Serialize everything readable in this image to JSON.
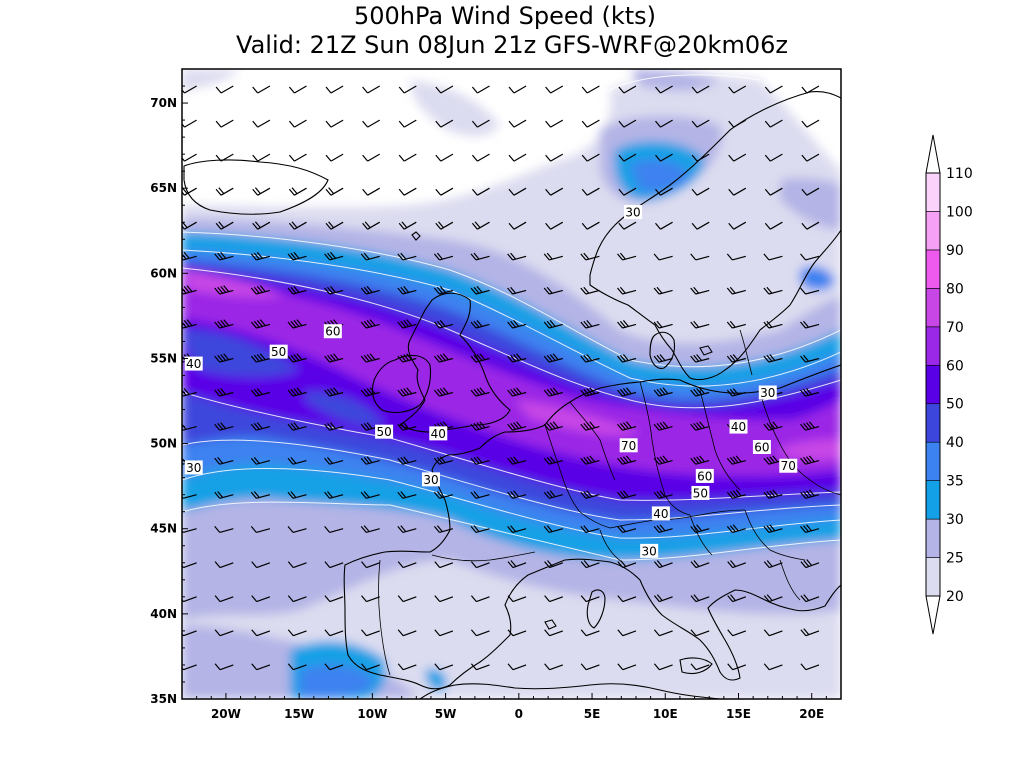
{
  "title": {
    "line1": "500hPa Wind Speed (kts)",
    "line2": "Valid: 21Z Sun 08Jun 21z GFS-WRF@20km06z"
  },
  "axes": {
    "lat_labels": [
      "70N",
      "65N",
      "60N",
      "55N",
      "50N",
      "45N",
      "40N",
      "35N"
    ],
    "lat_values": [
      70,
      65,
      60,
      55,
      50,
      45,
      40,
      35
    ],
    "lon_labels": [
      "20W",
      "15W",
      "10W",
      "5W",
      "0",
      "5E",
      "10E",
      "15E",
      "20E"
    ],
    "lon_values": [
      -20,
      -15,
      -10,
      -5,
      0,
      5,
      10,
      15,
      20
    ],
    "lon_range": [
      -23,
      22
    ],
    "lat_range": [
      35,
      72
    ]
  },
  "legend": {
    "levels": [
      "20",
      "25",
      "30",
      "35",
      "40",
      "50",
      "60",
      "70",
      "80",
      "90",
      "100",
      "110"
    ],
    "colors": [
      "#ffffff",
      "#dcdcf0",
      "#b4b4e6",
      "#14a0e6",
      "#3c82f0",
      "#3c46dc",
      "#5a00e6",
      "#9b28e6",
      "#c846e6",
      "#ee5aee",
      "#f5a0f5",
      "#fad2fa",
      "#ffffff"
    ]
  },
  "contour_labels": [
    {
      "text": "30",
      "lon": 7.8,
      "lat": 63.6
    },
    {
      "text": "60",
      "lon": -12.7,
      "lat": 56.6
    },
    {
      "text": "50",
      "lon": -16.4,
      "lat": 55.4
    },
    {
      "text": "40",
      "lon": -22.2,
      "lat": 54.7
    },
    {
      "text": "30",
      "lon": 17.0,
      "lat": 53.0
    },
    {
      "text": "50",
      "lon": -9.2,
      "lat": 50.7
    },
    {
      "text": "40",
      "lon": -5.5,
      "lat": 50.6
    },
    {
      "text": "70",
      "lon": 7.5,
      "lat": 49.9
    },
    {
      "text": "40",
      "lon": 15.0,
      "lat": 51.0
    },
    {
      "text": "60",
      "lon": 16.6,
      "lat": 49.8
    },
    {
      "text": "70",
      "lon": 18.4,
      "lat": 48.7
    },
    {
      "text": "30",
      "lon": -22.2,
      "lat": 48.6
    },
    {
      "text": "60",
      "lon": 12.7,
      "lat": 48.1
    },
    {
      "text": "30",
      "lon": -6.0,
      "lat": 47.9
    },
    {
      "text": "50",
      "lon": 12.4,
      "lat": 47.1
    },
    {
      "text": "40",
      "lon": 9.7,
      "lat": 45.9
    },
    {
      "text": "30",
      "lon": 8.9,
      "lat": 43.7
    }
  ]
}
